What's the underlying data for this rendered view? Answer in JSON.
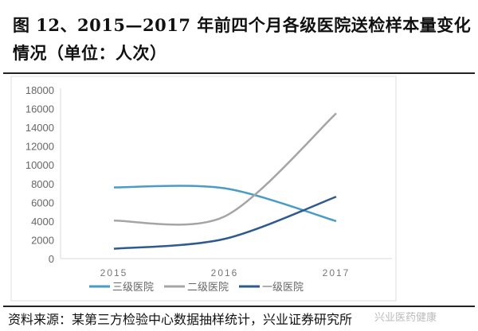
{
  "title": "图 12、2015—2017 年前四个月各级医院送检样本量变化情况（单位：人次）",
  "source": "资料来源：某第三方检验中心数据抽样统计，兴业证券研究所",
  "watermark": "兴业医药健康",
  "chart_data": {
    "type": "line",
    "title": "",
    "xlabel": "",
    "ylabel": "",
    "categories": [
      "2015",
      "2016",
      "2017"
    ],
    "ylim": [
      0,
      18000
    ],
    "yticks": [
      "0",
      "2000",
      "4000",
      "6000",
      "8000",
      "10000",
      "12000",
      "14000",
      "16000",
      "18000"
    ],
    "grid": false,
    "smooth": true,
    "legend_position": "bottom",
    "series": [
      {
        "name": "三级医院",
        "values": [
          7600,
          7500,
          4000
        ],
        "color": "#4a9bc6"
      },
      {
        "name": "二级医院",
        "values": [
          4050,
          4500,
          15500
        ],
        "color": "#a5a5a5"
      },
      {
        "name": "一级医院",
        "values": [
          1050,
          2100,
          6600
        ],
        "color": "#2e5a8e"
      }
    ]
  }
}
